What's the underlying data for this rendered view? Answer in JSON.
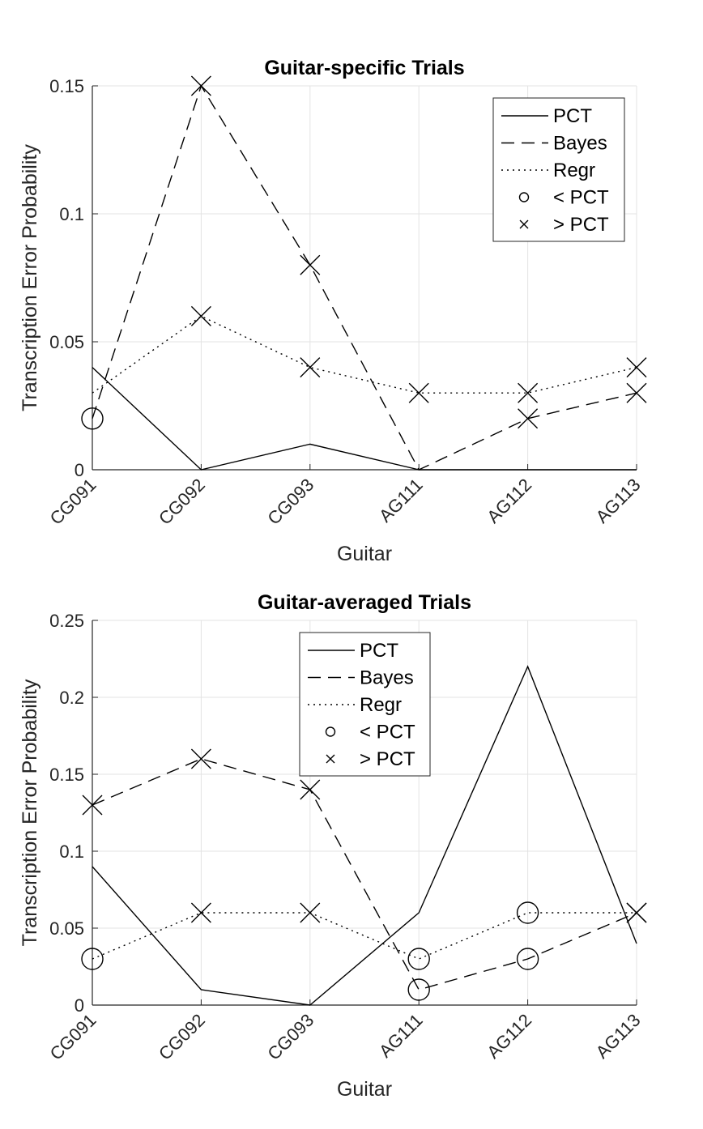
{
  "chart_data": [
    {
      "type": "line",
      "title": "Guitar-specific Trials",
      "xlabel": "Guitar",
      "ylabel": "Transcription Error Probability",
      "categories": [
        "CG091",
        "CG092",
        "CG093",
        "AG111",
        "AG112",
        "AG113"
      ],
      "ylim": [
        0,
        0.15
      ],
      "yticks": [
        "0",
        "0.05",
        "0.1",
        "0.15"
      ],
      "grid": true,
      "legend_position": "top-right",
      "series": [
        {
          "name": "PCT",
          "style": "solid",
          "values": [
            0.04,
            0.0,
            0.01,
            0.0,
            0.0,
            0.0
          ]
        },
        {
          "name": "Bayes",
          "style": "dashed",
          "values": [
            0.02,
            0.15,
            0.08,
            0.0,
            0.02,
            0.03
          ]
        },
        {
          "name": "Regr",
          "style": "dotted",
          "values": [
            0.03,
            0.06,
            0.04,
            0.03,
            0.03,
            0.04
          ]
        }
      ],
      "markers": [
        {
          "series": "Bayes",
          "index": 0,
          "type": "< PCT"
        },
        {
          "series": "Bayes",
          "index": 1,
          "type": "> PCT"
        },
        {
          "series": "Bayes",
          "index": 2,
          "type": "> PCT"
        },
        {
          "series": "Bayes",
          "index": 4,
          "type": "> PCT"
        },
        {
          "series": "Bayes",
          "index": 5,
          "type": "> PCT"
        },
        {
          "series": "Regr",
          "index": 1,
          "type": "> PCT"
        },
        {
          "series": "Regr",
          "index": 2,
          "type": "> PCT"
        },
        {
          "series": "Regr",
          "index": 3,
          "type": "> PCT"
        },
        {
          "series": "Regr",
          "index": 4,
          "type": "> PCT"
        },
        {
          "series": "Regr",
          "index": 5,
          "type": "> PCT"
        }
      ],
      "legend": [
        "PCT",
        "Bayes",
        "Regr",
        "< PCT",
        "> PCT"
      ]
    },
    {
      "type": "line",
      "title": "Guitar-averaged Trials",
      "xlabel": "Guitar",
      "ylabel": "Transcription Error Probability",
      "categories": [
        "CG091",
        "CG092",
        "CG093",
        "AG111",
        "AG112",
        "AG113"
      ],
      "ylim": [
        0,
        0.25
      ],
      "yticks": [
        "0",
        "0.05",
        "0.1",
        "0.15",
        "0.2",
        "0.25"
      ],
      "grid": true,
      "legend_position": "top-center",
      "series": [
        {
          "name": "PCT",
          "style": "solid",
          "values": [
            0.09,
            0.01,
            0.0,
            0.06,
            0.22,
            0.04
          ]
        },
        {
          "name": "Bayes",
          "style": "dashed",
          "values": [
            0.13,
            0.16,
            0.14,
            0.01,
            0.03,
            0.06
          ]
        },
        {
          "name": "Regr",
          "style": "dotted",
          "values": [
            0.03,
            0.06,
            0.06,
            0.03,
            0.06,
            0.06
          ]
        }
      ],
      "markers": [
        {
          "series": "Bayes",
          "index": 0,
          "type": "> PCT"
        },
        {
          "series": "Bayes",
          "index": 1,
          "type": "> PCT"
        },
        {
          "series": "Bayes",
          "index": 2,
          "type": "> PCT"
        },
        {
          "series": "Bayes",
          "index": 3,
          "type": "< PCT"
        },
        {
          "series": "Bayes",
          "index": 4,
          "type": "< PCT"
        },
        {
          "series": "Bayes",
          "index": 5,
          "type": "> PCT"
        },
        {
          "series": "Regr",
          "index": 0,
          "type": "< PCT"
        },
        {
          "series": "Regr",
          "index": 1,
          "type": "> PCT"
        },
        {
          "series": "Regr",
          "index": 2,
          "type": "> PCT"
        },
        {
          "series": "Regr",
          "index": 3,
          "type": "< PCT"
        },
        {
          "series": "Regr",
          "index": 4,
          "type": "< PCT"
        },
        {
          "series": "Regr",
          "index": 5,
          "type": "> PCT"
        }
      ],
      "legend": [
        "PCT",
        "Bayes",
        "Regr",
        "< PCT",
        "> PCT"
      ]
    }
  ]
}
